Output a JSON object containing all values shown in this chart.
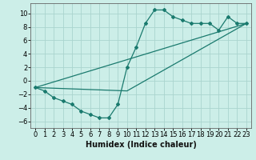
{
  "title": "",
  "xlabel": "Humidex (Indice chaleur)",
  "background_color": "#cceee8",
  "grid_color": "#aad4ce",
  "line_color": "#1a7a6e",
  "xlim": [
    -0.5,
    23.5
  ],
  "ylim": [
    -7,
    11.5
  ],
  "xticks": [
    0,
    1,
    2,
    3,
    4,
    5,
    6,
    7,
    8,
    9,
    10,
    11,
    12,
    13,
    14,
    15,
    16,
    17,
    18,
    19,
    20,
    21,
    22,
    23
  ],
  "yticks": [
    -6,
    -4,
    -2,
    0,
    2,
    4,
    6,
    8,
    10
  ],
  "line1_x": [
    0,
    1,
    2,
    3,
    4,
    5,
    6,
    7,
    8,
    9,
    10,
    11,
    12,
    13,
    14,
    15,
    16,
    17,
    18,
    19,
    20,
    21,
    22,
    23
  ],
  "line1_y": [
    -1,
    -1.5,
    -2.5,
    -3,
    -3.5,
    -4.5,
    -5,
    -5.5,
    -5.5,
    -3.5,
    2,
    5,
    8.5,
    10.5,
    10.5,
    9.5,
    9,
    8.5,
    8.5,
    8.5,
    7.5,
    9.5,
    8.5,
    8.5
  ],
  "line2_x": [
    0,
    23
  ],
  "line2_y": [
    -1,
    8.5
  ],
  "line3_x": [
    0,
    10,
    23
  ],
  "line3_y": [
    -1,
    -1.5,
    8.5
  ],
  "fontsize_label": 7,
  "tick_fontsize": 6,
  "marker": "D",
  "markersize": 2.0
}
